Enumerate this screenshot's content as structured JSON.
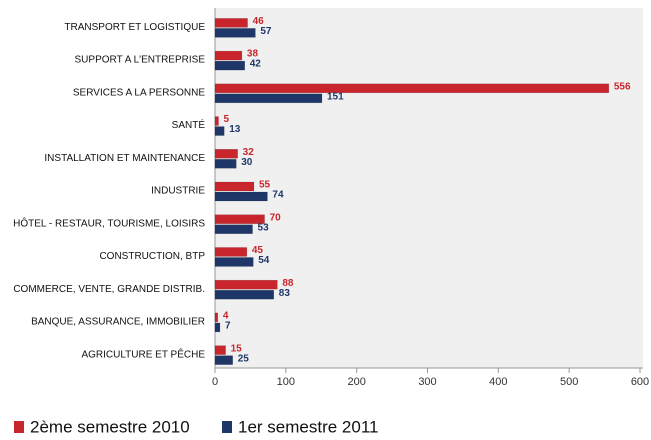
{
  "chart_data": {
    "type": "barh",
    "categories": [
      "TRANSPORT ET LOGISTIQUE",
      "SUPPORT A L'ENTREPRISE",
      "SERVICES  A LA PERSONNE",
      "SANTÉ",
      "INSTALLATION ET MAINTENANCE",
      "INDUSTRIE",
      "HÔTEL - RESTAUR, TOURISME, LOISIRS",
      "CONSTRUCTION, BTP",
      "COMMERCE, VENTE, GRANDE DISTRIB.",
      "BANQUE, ASSURANCE, IMMOBILIER",
      "AGRICULTURE ET PÊCHE"
    ],
    "series": [
      {
        "name": "2ème semestre 2010",
        "color": "#c8262c",
        "values": [
          46,
          38,
          556,
          5,
          32,
          55,
          70,
          45,
          88,
          4,
          15
        ]
      },
      {
        "name": "1er semestre 2011",
        "color": "#1f3768",
        "values": [
          57,
          42,
          151,
          13,
          30,
          74,
          53,
          54,
          83,
          7,
          25
        ]
      }
    ],
    "xlim": [
      0,
      600
    ],
    "xticks": [
      0,
      100,
      200,
      300,
      400,
      500,
      600
    ],
    "legend": "bottom"
  }
}
